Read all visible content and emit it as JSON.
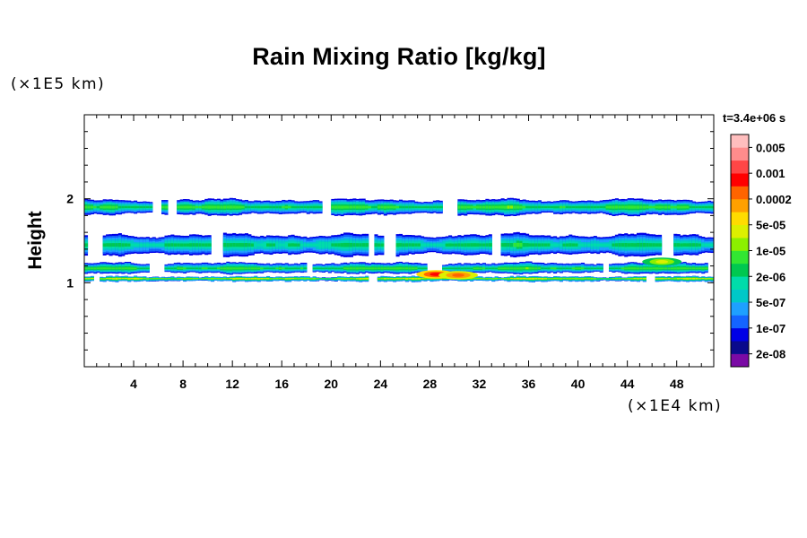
{
  "chart_data": {
    "type": "heatmap",
    "title": "Rain Mixing Ratio [kg/kg]",
    "ylabel": "Height",
    "xlabel": "",
    "x_scale_label": "(×1E4 km)",
    "y_scale_label": "(×1E5 km)",
    "timestamp": "t=3.4e+06 s",
    "x_ticks": [
      "4",
      "8",
      "12",
      "16",
      "20",
      "24",
      "28",
      "32",
      "36",
      "40",
      "44",
      "48"
    ],
    "x_tick_values": [
      4,
      8,
      12,
      16,
      20,
      24,
      28,
      32,
      36,
      40,
      44,
      48
    ],
    "y_ticks": [
      "1",
      "2"
    ],
    "y_tick_values": [
      1,
      2
    ],
    "xlim": [
      0,
      51
    ],
    "ylim": [
      0,
      3
    ],
    "colorbar": {
      "labels": [
        "0.005",
        "0.001",
        "0.0002",
        "5e-05",
        "1e-05",
        "2e-06",
        "5e-07",
        "1e-07",
        "2e-08"
      ],
      "colors": [
        "#7a0aa5",
        "#0a0a8c",
        "#0000e6",
        "#1464ff",
        "#1ea0ff",
        "#00c8c8",
        "#00dcaa",
        "#00c850",
        "#32e632",
        "#8cf000",
        "#dcf000",
        "#ffdc00",
        "#ffa000",
        "#ff6400",
        "#ff0000",
        "#ff4646",
        "#ff8c8c",
        "#ffbebe"
      ]
    },
    "bands": [
      {
        "y_bottom": 1.79,
        "y_top": 2.01,
        "core": 1.9,
        "level": 9
      },
      {
        "y_bottom": 1.3,
        "y_top": 1.6,
        "core": 1.45,
        "level": 8
      },
      {
        "y_bottom": 1.1,
        "y_top": 1.25,
        "core": 1.17,
        "level": 9
      },
      {
        "y_bottom": 1.01,
        "y_top": 1.08,
        "core": 1.05,
        "level": 11
      }
    ],
    "hotspots": [
      {
        "x": 28.5,
        "y": 1.1,
        "level": 14
      },
      {
        "x": 30.3,
        "y": 1.09,
        "level": 13
      },
      {
        "x": 46.8,
        "y": 1.25,
        "level": 10
      }
    ]
  }
}
